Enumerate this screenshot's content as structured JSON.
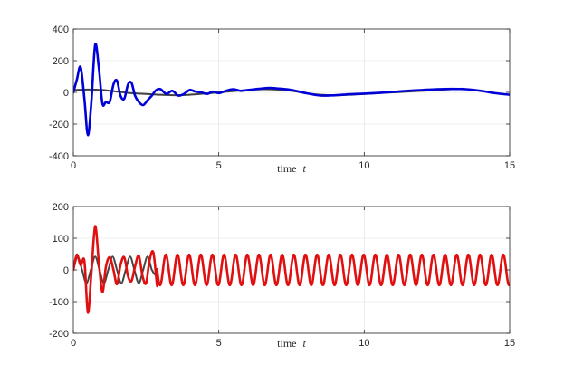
{
  "chart_data": [
    {
      "type": "line",
      "title": "",
      "xlabel": "time",
      "xlabel_var": "t",
      "ylabel": "",
      "xlim": [
        0,
        15
      ],
      "ylim": [
        -400,
        400
      ],
      "xticks": [
        0,
        5,
        10,
        15
      ],
      "yticks": [
        -400,
        -200,
        0,
        200,
        400
      ],
      "grid": true,
      "series": [
        {
          "color": "#404040",
          "width": 2.0,
          "x": [
            0,
            0.5,
            1,
            1.5,
            2,
            2.5,
            3,
            3.5,
            4,
            4.5,
            5,
            5.5,
            6,
            6.5,
            7,
            7.5,
            8,
            8.5,
            9,
            9.5,
            10,
            10.5,
            11,
            11.5,
            12,
            12.5,
            13,
            13.5,
            14,
            14.5,
            15
          ],
          "y": [
            15,
            18,
            15,
            5,
            -5,
            -10,
            -15,
            -18,
            -15,
            -8,
            0,
            8,
            15,
            20,
            18,
            10,
            -5,
            -15,
            -18,
            -15,
            -10,
            -5,
            0,
            5,
            10,
            15,
            20,
            20,
            10,
            -5,
            -15
          ]
        },
        {
          "color": "#0000d9",
          "width": 2.6,
          "x": [
            0,
            0.12,
            0.25,
            0.38,
            0.5,
            0.62,
            0.75,
            0.88,
            1.0,
            1.12,
            1.25,
            1.38,
            1.5,
            1.62,
            1.75,
            1.88,
            2.0,
            2.12,
            2.25,
            2.4,
            2.55,
            2.7,
            2.85,
            3.0,
            3.2,
            3.4,
            3.6,
            3.8,
            4.0,
            4.2,
            4.4,
            4.6,
            4.8,
            5.0,
            5.25,
            5.5,
            5.75,
            6.0,
            6.25,
            6.5,
            6.75,
            7.0,
            7.5,
            8.0,
            8.5,
            9.0,
            9.5,
            10.0,
            10.5,
            11.0,
            11.5,
            12.0,
            12.5,
            13.0,
            13.5,
            14.0,
            14.5,
            15.0
          ],
          "y": [
            0,
            80,
            160,
            -40,
            -270,
            -60,
            300,
            150,
            -70,
            -60,
            -60,
            50,
            75,
            -20,
            -40,
            50,
            60,
            -20,
            -60,
            -80,
            -50,
            -20,
            15,
            20,
            -10,
            10,
            -20,
            -10,
            15,
            5,
            0,
            -10,
            5,
            -5,
            10,
            20,
            10,
            15,
            20,
            25,
            28,
            25,
            15,
            -5,
            -20,
            -18,
            -12,
            -8,
            -3,
            3,
            10,
            15,
            20,
            22,
            20,
            10,
            -5,
            -15
          ]
        }
      ]
    },
    {
      "type": "line",
      "title": "",
      "xlabel": "time",
      "xlabel_var": "t",
      "ylabel": "",
      "xlim": [
        0,
        15
      ],
      "ylim": [
        -200,
        200
      ],
      "xticks": [
        0,
        5,
        10,
        15
      ],
      "yticks": [
        -200,
        -100,
        0,
        100,
        200
      ],
      "grid": true,
      "series": [
        {
          "color": "#454545",
          "width": 2.0,
          "x": [
            0,
            0.15,
            0.3,
            0.45,
            0.6,
            0.75,
            0.9,
            1.05,
            1.2,
            1.35,
            1.5,
            1.65,
            1.8,
            1.95,
            2.1,
            2.25,
            2.4,
            2.55,
            2.7,
            2.85
          ],
          "y": [
            0,
            42,
            0,
            -42,
            0,
            42,
            0,
            -42,
            0,
            42,
            0,
            -42,
            0,
            42,
            0,
            -42,
            0,
            42,
            0,
            -20
          ]
        },
        {
          "color": "#e01010",
          "width": 2.6,
          "x": [
            0,
            0.12,
            0.25,
            0.38,
            0.5,
            0.62,
            0.75,
            0.88,
            1.0,
            1.12,
            1.25,
            1.38,
            1.5,
            1.62,
            1.75,
            1.88,
            2.0,
            2.12,
            2.25,
            2.38,
            2.5,
            2.62,
            2.75,
            2.88
          ],
          "y": [
            0,
            48,
            15,
            28,
            -135,
            -10,
            138,
            20,
            -70,
            10,
            40,
            0,
            -45,
            15,
            40,
            -20,
            -35,
            10,
            45,
            -20,
            -42,
            30,
            55,
            -50
          ],
          "sine": {
            "x_from": 2.88,
            "x_to": 15,
            "period": 0.4,
            "amplitude": 48,
            "phase_x": 2.68
          }
        }
      ]
    }
  ]
}
